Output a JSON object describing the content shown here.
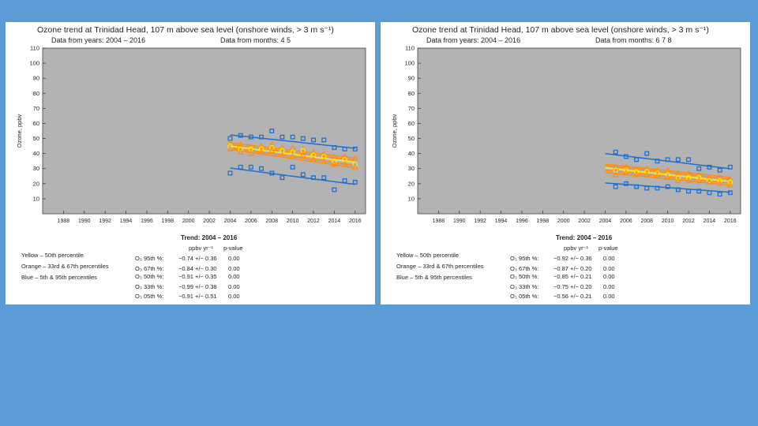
{
  "colors": {
    "background": "#5b9bd5",
    "plot_bg": "#b3b3b3",
    "yellow": "#ffee00",
    "orange": "#ff8c1a",
    "blue": "#1f6fd1"
  },
  "chart_data": [
    {
      "type": "scatter",
      "title": "Ozone trend at Trinidad Head, 107 m above sea level (onshore winds, > 3 m s⁻¹)",
      "subtitle_years": "Data from years:  2004 – 2016",
      "subtitle_months": "Data from months:  4  5",
      "ylabel": "Ozone, ppbv",
      "xlim": [
        1986,
        2017
      ],
      "ylim": [
        0,
        110
      ],
      "xticks": [
        1988,
        1990,
        1992,
        1994,
        1996,
        1998,
        2000,
        2002,
        2004,
        2006,
        2008,
        2010,
        2012,
        2014,
        2016
      ],
      "yticks": [
        10,
        20,
        30,
        40,
        50,
        60,
        70,
        80,
        90,
        100,
        110
      ],
      "grid": false,
      "x": [
        2004,
        2005,
        2006,
        2007,
        2008,
        2009,
        2010,
        2011,
        2012,
        2013,
        2014,
        2015,
        2016
      ],
      "series": [
        {
          "name": "95th %",
          "color": "#1f6fd1",
          "marker": "square",
          "values": [
            50,
            52,
            51,
            51,
            55,
            51,
            51,
            50,
            49,
            49,
            44,
            43,
            43
          ]
        },
        {
          "name": "67th %",
          "color": "#ff8c1a",
          "marker": "triangle",
          "values": [
            47,
            46,
            44,
            45,
            46,
            44,
            44,
            43,
            41,
            40,
            38,
            38,
            37
          ]
        },
        {
          "name": "50th %",
          "color": "#ffee00",
          "marker": "circle",
          "values": [
            45,
            43,
            43,
            43,
            44,
            42,
            41,
            42,
            39,
            38,
            35,
            36,
            33
          ]
        },
        {
          "name": "33th %",
          "color": "#ff8c1a",
          "marker": "triangle",
          "values": [
            43,
            41,
            40,
            41,
            42,
            39,
            38,
            39,
            36,
            35,
            33,
            33,
            31
          ]
        },
        {
          "name": "05th %",
          "color": "#1f6fd1",
          "marker": "square",
          "values": [
            27,
            31,
            31,
            30,
            27,
            24,
            31,
            26,
            24,
            24,
            16,
            22,
            21
          ]
        }
      ],
      "trend_lines": [
        {
          "color": "#1f6fd1",
          "start": 52.4,
          "end": 43.5
        },
        {
          "color": "#ff8c1a",
          "start": 47.1,
          "end": 37.0
        },
        {
          "color": "#ff8c1a",
          "start": 46.0,
          "end": 35.5
        },
        {
          "color": "#ffee00",
          "start": 45.0,
          "end": 34.1
        },
        {
          "color": "#ff8c1a",
          "start": 43.9,
          "end": 32.0
        },
        {
          "color": "#ff8c1a",
          "start": 42.8,
          "end": 30.5
        },
        {
          "color": "#1f6fd1",
          "start": 30.4,
          "end": 19.5
        }
      ],
      "trend_table": {
        "title": "Trend:  2004 – 2016",
        "units": "ppbv yr⁻¹",
        "pvalue_header": "p-value",
        "legend": [
          "Yellow – 50th percentile",
          "Orange – 33rd & 67th percentiles",
          "Blue  –  5th & 95th percentiles"
        ],
        "rows": [
          {
            "label": "O₃ 95th %:",
            "value": "−0.74 +/− 0.36",
            "p": "0.00"
          },
          {
            "label": "O₃ 67th %:",
            "value": "−0.84 +/− 0.30",
            "p": "0.00"
          },
          {
            "label": "O₃ 50th %:",
            "value": "−0.91 +/− 0.35",
            "p": "0.00"
          },
          {
            "label": "O₃ 33th %:",
            "value": "−0.99 +/− 0.38",
            "p": "0.00"
          },
          {
            "label": "O₃ 05th %:",
            "value": "−0.91 +/− 0.51",
            "p": "0.00"
          }
        ]
      }
    },
    {
      "type": "scatter",
      "title": "Ozone trend at Trinidad Head, 107 m above sea level (onshore winds, > 3 m s⁻¹)",
      "subtitle_years": "Data from years:  2004 – 2016",
      "subtitle_months": "Data from months:  6  7  8",
      "ylabel": "Ozone, ppbv",
      "xlim": [
        1986,
        2017
      ],
      "ylim": [
        0,
        110
      ],
      "xticks": [
        1988,
        1990,
        1992,
        1994,
        1996,
        1998,
        2000,
        2002,
        2004,
        2006,
        2008,
        2010,
        2012,
        2014,
        2016
      ],
      "yticks": [
        10,
        20,
        30,
        40,
        50,
        60,
        70,
        80,
        90,
        100,
        110
      ],
      "grid": false,
      "x": [
        2004,
        2005,
        2006,
        2007,
        2008,
        2009,
        2010,
        2011,
        2012,
        2013,
        2014,
        2015,
        2016
      ],
      "series": [
        {
          "name": "95th %",
          "color": "#1f6fd1",
          "marker": "square",
          "values": [
            null,
            41,
            38,
            36,
            40,
            35,
            36,
            36,
            36,
            30,
            31,
            29,
            31
          ]
        },
        {
          "name": "67th %",
          "color": "#ff8c1a",
          "marker": "triangle",
          "values": [
            null,
            31,
            31,
            29,
            30,
            29,
            29,
            27,
            27,
            26,
            24,
            24,
            23
          ]
        },
        {
          "name": "50th %",
          "color": "#ffee00",
          "marker": "circle",
          "values": [
            null,
            29,
            29,
            28,
            28,
            27,
            26,
            24,
            24,
            24,
            22,
            22,
            21
          ]
        },
        {
          "name": "33th %",
          "color": "#ff8c1a",
          "marker": "triangle",
          "values": [
            null,
            26,
            27,
            26,
            26,
            25,
            24,
            22,
            22,
            22,
            21,
            20,
            19
          ]
        },
        {
          "name": "05th %",
          "color": "#1f6fd1",
          "marker": "square",
          "values": [
            null,
            18,
            20,
            18,
            17,
            17,
            18,
            16,
            15,
            15,
            14,
            13,
            14
          ]
        }
      ],
      "trend_lines": [
        {
          "color": "#1f6fd1",
          "start": 40.0,
          "end": 29.9
        },
        {
          "color": "#ff8c1a",
          "start": 33.0,
          "end": 24.3
        },
        {
          "color": "#ff8c1a",
          "start": 32.0,
          "end": 23.0
        },
        {
          "color": "#ffee00",
          "start": 30.5,
          "end": 21.4
        },
        {
          "color": "#ff8c1a",
          "start": 29.0,
          "end": 20.3
        },
        {
          "color": "#ff8c1a",
          "start": 27.5,
          "end": 19.0
        },
        {
          "color": "#1f6fd1",
          "start": 20.5,
          "end": 14.3
        }
      ],
      "trend_table": {
        "title": "Trend:  2004 – 2016",
        "units": "ppbv yr⁻¹",
        "pvalue_header": "p-value",
        "legend": [
          "Yellow – 50th percentile",
          "Orange – 33rd & 67th percentiles",
          "Blue  –  5th & 95th percentiles"
        ],
        "rows": [
          {
            "label": "O₃ 95th %:",
            "value": "−0.92 +/− 0.36",
            "p": "0.00"
          },
          {
            "label": "O₃ 67th %:",
            "value": "−0.87 +/− 0.20",
            "p": "0.00"
          },
          {
            "label": "O₃ 50th %:",
            "value": "−0.85 +/− 0.21",
            "p": "0.00"
          },
          {
            "label": "O₃ 33th %:",
            "value": "−0.75 +/− 0.20",
            "p": "0.00"
          },
          {
            "label": "O₃ 05th %:",
            "value": "−0.56 +/− 0.21",
            "p": "0.00"
          }
        ]
      }
    }
  ]
}
